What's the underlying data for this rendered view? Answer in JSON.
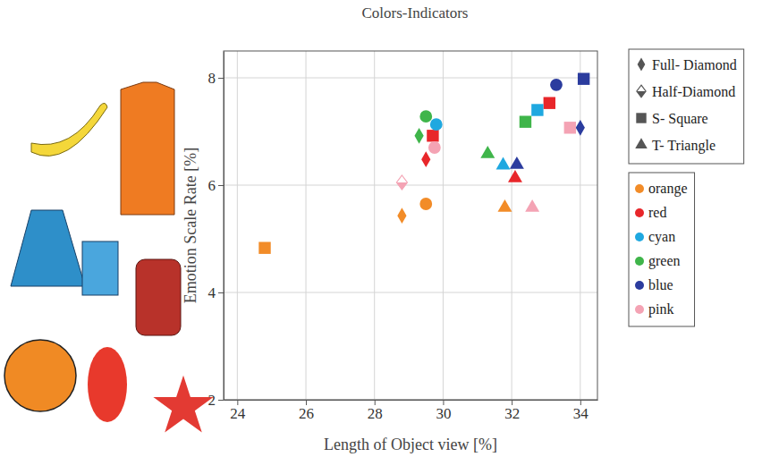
{
  "chart_data": {
    "type": "scatter",
    "title": "Colors-Indicators",
    "x_label": "Length of Object view [%]",
    "y_label": "Emotion Scale Rate [%]",
    "xlim": [
      23.6,
      34.5
    ],
    "ylim": [
      2,
      8.5
    ],
    "xticks": [
      24,
      26,
      28,
      30,
      32,
      34
    ],
    "yticks": [
      2,
      4,
      6,
      8
    ],
    "grid": true,
    "legend": "upper right",
    "marker_legend": [
      {
        "name": "Full- Diamond",
        "marker": "diamond"
      },
      {
        "name": "Half-Diamond",
        "marker": "half-diamond"
      },
      {
        "name": "S- Square",
        "marker": "square"
      },
      {
        "name": "T- Triangle",
        "marker": "triangle"
      }
    ],
    "series": [
      {
        "name": "orange",
        "color": "#f28c28",
        "x": [
          29.5,
          28.8,
          31.8,
          24.8
        ],
        "values": [
          5.65,
          5.43,
          5.58,
          4.83
        ],
        "markers": [
          "circle",
          "diamond",
          "triangle",
          "square"
        ]
      },
      {
        "name": "red",
        "color": "#e8262a",
        "x": [
          29.7,
          29.5,
          32.1,
          33.1
        ],
        "values": [
          6.92,
          6.48,
          6.13,
          7.53
        ],
        "markers": [
          "square",
          "diamond",
          "triangle",
          "square"
        ]
      },
      {
        "name": "cyan",
        "color": "#1fa8e0",
        "x": [
          29.8,
          32.75,
          31.75
        ],
        "values": [
          7.13,
          7.4,
          6.37
        ],
        "markers": [
          "circle",
          "square",
          "triangle"
        ]
      },
      {
        "name": "green",
        "color": "#3fb54a",
        "x": [
          29.5,
          29.3,
          32.4,
          31.3
        ],
        "values": [
          7.28,
          6.92,
          7.18,
          6.58
        ],
        "markers": [
          "circle",
          "diamond",
          "square",
          "triangle"
        ]
      },
      {
        "name": "blue",
        "color": "#2b3c9e",
        "x": [
          33.3,
          34.1,
          34.0,
          32.15
        ],
        "values": [
          7.87,
          7.98,
          7.07,
          6.38
        ],
        "markers": [
          "circle",
          "square",
          "diamond",
          "triangle"
        ]
      },
      {
        "name": "pink",
        "color": "#f4a3b4",
        "x": [
          29.75,
          28.8,
          33.7,
          32.6
        ],
        "values": [
          6.7,
          6.05,
          7.07,
          5.58
        ],
        "markers": [
          "circle",
          "half-diamond",
          "square",
          "triangle"
        ]
      }
    ]
  }
}
